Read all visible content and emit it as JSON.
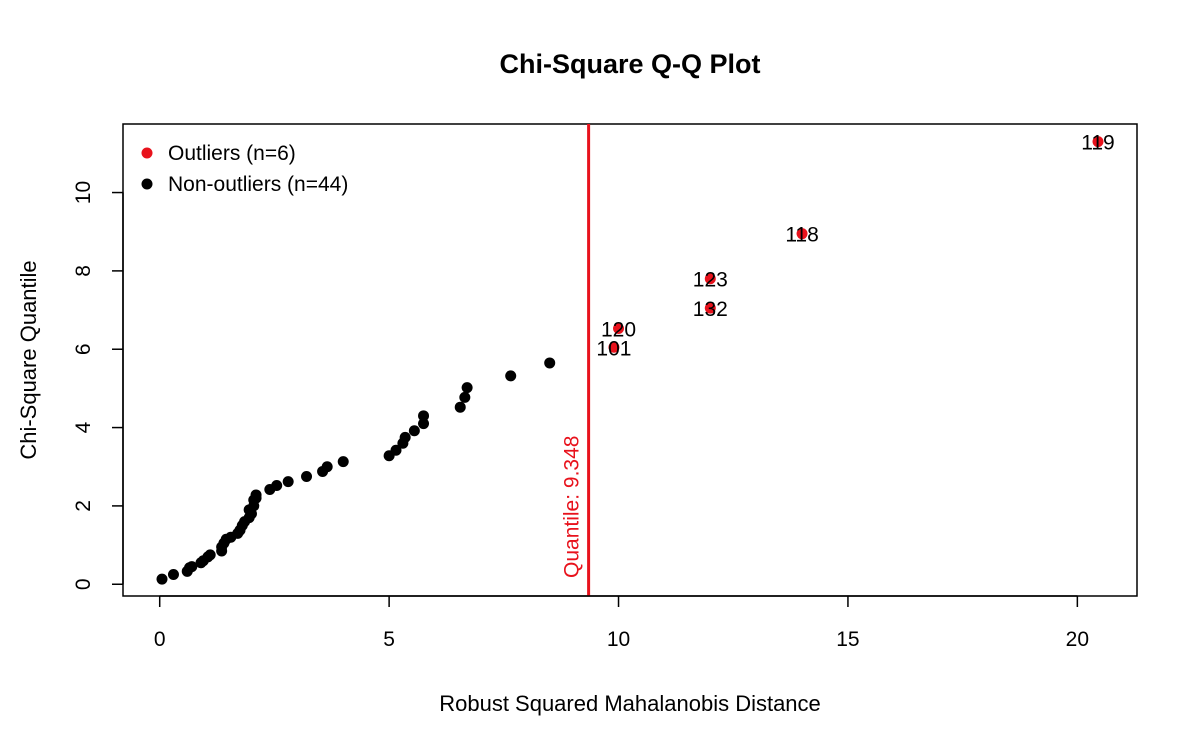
{
  "chart_data": {
    "type": "scatter",
    "title": "Chi-Square Q-Q Plot",
    "xlabel": "Robust Squared Mahalanobis Distance",
    "ylabel": "Chi-Square Quantile",
    "xlim": [
      -0.8,
      21.3
    ],
    "ylim": [
      -0.3,
      11.75
    ],
    "xticks": [
      0,
      5,
      10,
      15,
      20
    ],
    "yticks": [
      0,
      2,
      4,
      6,
      8,
      10
    ],
    "grid": false,
    "legend_position": "top-left",
    "legend": [
      {
        "label": "Outliers (n=6)",
        "color": "#e8121c"
      },
      {
        "label": "Non-outliers (n=44)",
        "color": "#000000"
      }
    ],
    "cutoff": {
      "x": 9.348,
      "label": "Quantile:  9.348",
      "color": "#e8121c"
    },
    "series": [
      {
        "name": "Outliers (n=6)",
        "color": "#e8121c",
        "points": [
          {
            "x": 9.9,
            "y": 6.05,
            "label": "101"
          },
          {
            "x": 10.0,
            "y": 6.53,
            "label": "120"
          },
          {
            "x": 12.0,
            "y": 7.05,
            "label": "132"
          },
          {
            "x": 12.0,
            "y": 7.8,
            "label": "123"
          },
          {
            "x": 14.0,
            "y": 8.95,
            "label": "118"
          },
          {
            "x": 20.45,
            "y": 11.3,
            "label": "119"
          }
        ]
      },
      {
        "name": "Non-outliers (n=44)",
        "color": "#000000",
        "points": [
          {
            "x": 0.05,
            "y": 0.13
          },
          {
            "x": 0.3,
            "y": 0.25
          },
          {
            "x": 0.6,
            "y": 0.33
          },
          {
            "x": 0.65,
            "y": 0.42
          },
          {
            "x": 0.7,
            "y": 0.45
          },
          {
            "x": 0.9,
            "y": 0.55
          },
          {
            "x": 0.95,
            "y": 0.6
          },
          {
            "x": 1.05,
            "y": 0.7
          },
          {
            "x": 1.1,
            "y": 0.75
          },
          {
            "x": 1.35,
            "y": 0.85
          },
          {
            "x": 1.35,
            "y": 0.95
          },
          {
            "x": 1.4,
            "y": 1.05
          },
          {
            "x": 1.45,
            "y": 1.15
          },
          {
            "x": 1.55,
            "y": 1.2
          },
          {
            "x": 1.7,
            "y": 1.3
          },
          {
            "x": 1.75,
            "y": 1.38
          },
          {
            "x": 1.8,
            "y": 1.5
          },
          {
            "x": 1.85,
            "y": 1.6
          },
          {
            "x": 1.95,
            "y": 1.7
          },
          {
            "x": 2.0,
            "y": 1.8
          },
          {
            "x": 1.95,
            "y": 1.9
          },
          {
            "x": 2.05,
            "y": 2.0
          },
          {
            "x": 2.05,
            "y": 2.15
          },
          {
            "x": 2.1,
            "y": 2.28
          },
          {
            "x": 2.4,
            "y": 2.42
          },
          {
            "x": 2.55,
            "y": 2.52
          },
          {
            "x": 2.8,
            "y": 2.62
          },
          {
            "x": 3.2,
            "y": 2.75
          },
          {
            "x": 3.55,
            "y": 2.88
          },
          {
            "x": 3.65,
            "y": 3.0
          },
          {
            "x": 4.0,
            "y": 3.13
          },
          {
            "x": 5.0,
            "y": 3.28
          },
          {
            "x": 5.15,
            "y": 3.42
          },
          {
            "x": 5.3,
            "y": 3.6
          },
          {
            "x": 5.35,
            "y": 3.75
          },
          {
            "x": 5.55,
            "y": 3.92
          },
          {
            "x": 5.75,
            "y": 4.1
          },
          {
            "x": 5.75,
            "y": 4.3
          },
          {
            "x": 6.55,
            "y": 4.52
          },
          {
            "x": 6.65,
            "y": 4.77
          },
          {
            "x": 6.7,
            "y": 5.02
          },
          {
            "x": 7.65,
            "y": 5.32
          },
          {
            "x": 8.5,
            "y": 5.65
          },
          {
            "x": 2.1,
            "y": 2.2
          }
        ]
      }
    ]
  }
}
